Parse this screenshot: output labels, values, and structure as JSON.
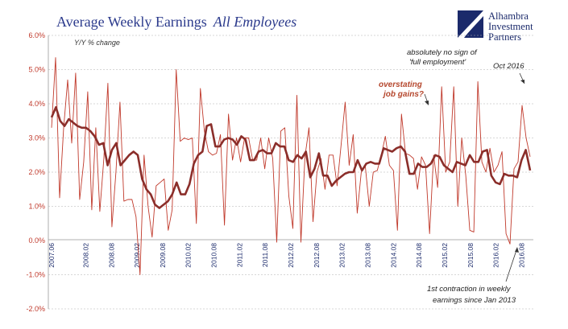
{
  "header": {
    "title": "Average Weekly Earnings",
    "title_em": "All Employees",
    "subtitle": "Y/Y % change"
  },
  "logo": {
    "lines": [
      "Alhambra",
      "Investment",
      "Partners"
    ],
    "color": "#1b2a6b"
  },
  "annotations": {
    "full_employment_1": "absolutely no sign of",
    "full_employment_2": "'full employment'",
    "oct2016": "Oct 2016",
    "overstating_1": "overstating",
    "overstating_2": "job gains?",
    "contraction_1": "1st contraction in weekly",
    "contraction_2": "earnings since Jan 2013"
  },
  "chart_data": {
    "type": "line",
    "ylim": [
      -2.0,
      6.0
    ],
    "yticks": [
      "6.0%",
      "5.0%",
      "4.0%",
      "3.0%",
      "2.0%",
      "1.0%",
      "0.0%",
      "-1.0%",
      "-2.0%"
    ],
    "xticks": [
      "2007.06",
      "2008.02",
      "2008.08",
      "2009.02",
      "2009.08",
      "2010.02",
      "2010.08",
      "2011.02",
      "2011.08",
      "2012.02",
      "2012.08",
      "2013.02",
      "2013.08",
      "2014.02",
      "2014.08",
      "2015.02",
      "2015.08",
      "2016.02",
      "2016.08"
    ],
    "grid": true,
    "x_start": "2007.06",
    "x_end": "2016.10",
    "colors": {
      "thin": "#c0392b",
      "thick": "#8b2e2a"
    },
    "series": [
      {
        "style": "thin",
        "values": [
          3.3,
          5.35,
          1.25,
          3.3,
          4.7,
          2.85,
          4.9,
          1.2,
          2.3,
          4.35,
          0.9,
          3.3,
          0.85,
          2.4,
          4.6,
          0.4,
          2.0,
          4.05,
          1.15,
          1.2,
          1.2,
          0.7,
          -1.0,
          2.5,
          1.0,
          0.1,
          1.6,
          1.7,
          1.8,
          0.3,
          0.9,
          5.0,
          2.9,
          3.0,
          2.95,
          3.0,
          0.5,
          4.45,
          3.2,
          2.6,
          2.5,
          2.55,
          3.1,
          0.45,
          3.7,
          2.35,
          3.0,
          2.3,
          3.0,
          3.0,
          2.35,
          2.35,
          3.0,
          2.1,
          3.0,
          2.4,
          -0.05,
          3.2,
          3.3,
          1.3,
          0.35,
          4.25,
          -0.05,
          2.45,
          3.3,
          0.55,
          2.0,
          2.4,
          1.5,
          2.5,
          2.5,
          1.6,
          2.8,
          4.05,
          2.2,
          3.1,
          0.8,
          2.0,
          2.2,
          1.0,
          2.0,
          2.05,
          2.5,
          3.05,
          2.2,
          2.05,
          0.3,
          3.7,
          2.55,
          2.5,
          2.4,
          1.5,
          2.45,
          2.2,
          0.2,
          2.5,
          1.55,
          4.5,
          2.0,
          2.3,
          4.5,
          1.0,
          3.0,
          1.9,
          0.3,
          0.25,
          4.65,
          2.3,
          2.0,
          2.7,
          2.0,
          2.2,
          2.6,
          0.2,
          -0.1,
          2.1,
          2.3,
          3.95,
          3.0,
          2.45
        ],
        "range": [
          0,
          112
        ]
      },
      {
        "name": "",
        "style": "thick",
        "values": [
          3.6,
          3.9,
          3.5,
          3.35,
          3.55,
          3.45,
          3.35,
          3.3,
          3.3,
          3.2,
          3.05,
          2.8,
          2.85,
          2.2,
          2.65,
          2.85,
          2.2,
          2.35,
          2.5,
          2.6,
          2.5,
          1.8,
          1.5,
          1.35,
          1.05,
          0.95,
          1.05,
          1.15,
          1.35,
          1.7,
          1.35,
          1.35,
          1.65,
          2.25,
          2.5,
          2.6,
          3.35,
          3.4,
          2.75,
          2.75,
          2.95,
          3.0,
          2.95,
          2.8,
          3.05,
          2.95,
          2.35,
          2.35,
          2.6,
          2.65,
          2.55,
          2.55,
          2.85,
          2.75,
          2.75,
          2.35,
          2.3,
          2.5,
          2.4,
          2.6,
          1.85,
          2.1,
          2.55,
          1.9,
          1.9,
          1.6,
          1.75,
          1.85,
          1.95,
          2.0,
          2.0,
          2.35,
          2.05,
          2.25,
          2.3,
          2.25,
          2.25,
          2.7,
          2.65,
          2.6,
          2.7,
          2.75,
          2.6,
          1.95,
          1.95,
          2.25,
          2.15,
          2.15,
          2.25,
          2.5,
          2.45,
          2.2,
          2.1,
          2.0,
          2.3,
          2.25,
          2.2,
          2.5,
          2.3,
          2.3,
          2.6,
          2.65,
          1.9,
          1.7,
          1.65,
          1.95,
          1.9,
          1.9,
          1.85,
          2.35,
          2.65,
          2.05
        ],
        "range": [
          0,
          112
        ]
      }
    ]
  }
}
